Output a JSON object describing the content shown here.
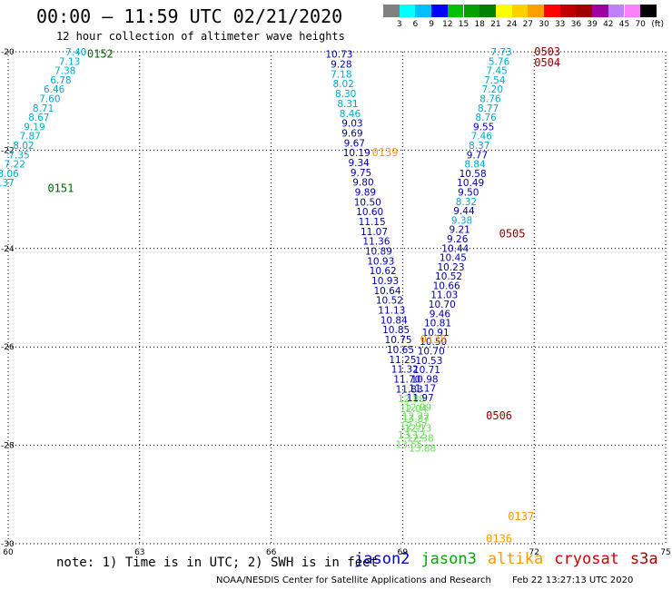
{
  "header": {
    "title": "00:00 – 11:59 UTC 02/21/2020",
    "subtitle": "12 hour collection of altimeter wave heights"
  },
  "legend": {
    "unit_label": "(ft)",
    "thresholds": [
      "3",
      "6",
      "9",
      "12",
      "15",
      "18",
      "21",
      "24",
      "27",
      "30",
      "33",
      "36",
      "39",
      "42",
      "45",
      "70"
    ],
    "colors": [
      "#808080",
      "#00ffff",
      "#00bfff",
      "#0000ff",
      "#00c000",
      "#00a000",
      "#008000",
      "#ffff00",
      "#ffd000",
      "#ffa000",
      "#ff0000",
      "#c00000",
      "#a00000",
      "#a000a0",
      "#c080ff",
      "#ff80ff",
      "#000000"
    ]
  },
  "footer": {
    "note": "note: 1) Time is in UTC; 2) SWH is in feet",
    "satellites": [
      {
        "name": "jason2",
        "color": "#0000cc"
      },
      {
        "name": "jason3",
        "color": "#00aa00"
      },
      {
        "name": "altika",
        "color": "#ff9900"
      },
      {
        "name": "cryosat",
        "color": "#cc0000"
      },
      {
        "name": "s3a",
        "color": "#aa0000"
      }
    ],
    "credit": "NOAA/NESDIS Center for Satellite Applications and Research",
    "timestamp": "Feb 22 13:27:13 UTC 2020"
  },
  "chart_data": {
    "type": "scatter",
    "xlim": [
      60,
      75
    ],
    "ylim": [
      -30,
      -20
    ],
    "x_ticks": [
      60,
      63,
      66,
      69,
      72,
      75
    ],
    "y_ticks": [
      -20,
      -22,
      -24,
      -26,
      -28,
      -30
    ],
    "grid": true,
    "colors": {
      "cyan": "#00aacc",
      "navy": "#0000aa",
      "green": "#66dd55",
      "orange": "#ff9900",
      "darkred": "#880000",
      "darkgreen": "#006600"
    },
    "pass_labels": [
      {
        "text": "0152",
        "x": 62.1,
        "y": -20.05,
        "color": "darkgreen"
      },
      {
        "text": "0151",
        "x": 61.2,
        "y": -22.78,
        "color": "darkgreen"
      },
      {
        "text": "0139",
        "x": 68.6,
        "y": -22.05,
        "color": "orange"
      },
      {
        "text": "0503",
        "x": 72.3,
        "y": -20.0,
        "color": "darkred"
      },
      {
        "text": "0504",
        "x": 72.3,
        "y": -20.22,
        "color": "darkred"
      },
      {
        "text": "0505",
        "x": 71.5,
        "y": -23.7,
        "color": "darkred"
      },
      {
        "text": "0506",
        "x": 71.2,
        "y": -27.4,
        "color": "darkred"
      },
      {
        "text": "0138",
        "x": 69.7,
        "y": -25.85,
        "color": "orange"
      },
      {
        "text": "0137",
        "x": 71.7,
        "y": -29.45,
        "color": "orange"
      },
      {
        "text": "0136",
        "x": 71.2,
        "y": -29.9,
        "color": "orange"
      }
    ],
    "points": [
      {
        "v": "7.40",
        "x": 61.55,
        "y": -20.0,
        "c": "cyan"
      },
      {
        "v": "7.13",
        "x": 61.4,
        "y": -20.19,
        "c": "cyan"
      },
      {
        "v": "7.38",
        "x": 61.3,
        "y": -20.38,
        "c": "cyan"
      },
      {
        "v": "6.78",
        "x": 61.2,
        "y": -20.57,
        "c": "cyan"
      },
      {
        "v": "6.46",
        "x": 61.05,
        "y": -20.76,
        "c": "cyan"
      },
      {
        "v": "7.60",
        "x": 60.95,
        "y": -20.95,
        "c": "cyan"
      },
      {
        "v": "8.71",
        "x": 60.8,
        "y": -21.14,
        "c": "cyan"
      },
      {
        "v": "8.67",
        "x": 60.7,
        "y": -21.33,
        "c": "cyan"
      },
      {
        "v": "9.19",
        "x": 60.6,
        "y": -21.52,
        "c": "cyan"
      },
      {
        "v": "7.87",
        "x": 60.5,
        "y": -21.71,
        "c": "cyan"
      },
      {
        "v": "8.02",
        "x": 60.35,
        "y": -21.9,
        "c": "cyan"
      },
      {
        "v": "7.35",
        "x": 60.25,
        "y": -22.09,
        "c": "cyan"
      },
      {
        "v": "7.22",
        "x": 60.15,
        "y": -22.28,
        "c": "cyan"
      },
      {
        "v": "8.06",
        "x": 60.0,
        "y": -22.47,
        "c": "cyan"
      },
      {
        "v": "6.37",
        "x": 59.9,
        "y": -22.66,
        "c": "cyan"
      },
      {
        "v": "10.73",
        "x": 67.55,
        "y": -20.05,
        "c": "navy"
      },
      {
        "v": "9.28",
        "x": 67.6,
        "y": -20.25,
        "c": "navy"
      },
      {
        "v": "7.18",
        "x": 67.6,
        "y": -20.45,
        "c": "cyan"
      },
      {
        "v": "8.02",
        "x": 67.65,
        "y": -20.65,
        "c": "cyan"
      },
      {
        "v": "8.30",
        "x": 67.7,
        "y": -20.85,
        "c": "cyan"
      },
      {
        "v": "8.31",
        "x": 67.75,
        "y": -21.05,
        "c": "cyan"
      },
      {
        "v": "8.46",
        "x": 67.8,
        "y": -21.25,
        "c": "cyan"
      },
      {
        "v": "9.03",
        "x": 67.85,
        "y": -21.45,
        "c": "navy"
      },
      {
        "v": "9.69",
        "x": 67.85,
        "y": -21.65,
        "c": "navy"
      },
      {
        "v": "9.67",
        "x": 67.9,
        "y": -21.85,
        "c": "navy"
      },
      {
        "v": "10.19",
        "x": 67.95,
        "y": -22.05,
        "c": "navy"
      },
      {
        "v": "9.34",
        "x": 68.0,
        "y": -22.25,
        "c": "navy"
      },
      {
        "v": "9.75",
        "x": 68.05,
        "y": -22.45,
        "c": "navy"
      },
      {
        "v": "9.80",
        "x": 68.1,
        "y": -22.65,
        "c": "navy"
      },
      {
        "v": "9.89",
        "x": 68.15,
        "y": -22.85,
        "c": "navy"
      },
      {
        "v": "10.50",
        "x": 68.2,
        "y": -23.05,
        "c": "navy"
      },
      {
        "v": "10.60",
        "x": 68.25,
        "y": -23.25,
        "c": "navy"
      },
      {
        "v": "11.15",
        "x": 68.3,
        "y": -23.45,
        "c": "navy"
      },
      {
        "v": "11.07",
        "x": 68.35,
        "y": -23.65,
        "c": "navy"
      },
      {
        "v": "11.36",
        "x": 68.4,
        "y": -23.85,
        "c": "navy"
      },
      {
        "v": "10.89",
        "x": 68.45,
        "y": -24.05,
        "c": "navy"
      },
      {
        "v": "10.93",
        "x": 68.5,
        "y": -24.25,
        "c": "navy"
      },
      {
        "v": "10.62",
        "x": 68.55,
        "y": -24.45,
        "c": "navy"
      },
      {
        "v": "10.93",
        "x": 68.6,
        "y": -24.65,
        "c": "navy"
      },
      {
        "v": "10.64",
        "x": 68.65,
        "y": -24.85,
        "c": "navy"
      },
      {
        "v": "10.52",
        "x": 68.7,
        "y": -25.05,
        "c": "navy"
      },
      {
        "v": "11.13",
        "x": 68.75,
        "y": -25.25,
        "c": "navy"
      },
      {
        "v": "10.84",
        "x": 68.8,
        "y": -25.45,
        "c": "navy"
      },
      {
        "v": "10.85",
        "x": 68.85,
        "y": -25.65,
        "c": "navy"
      },
      {
        "v": "10.75",
        "x": 68.9,
        "y": -25.85,
        "c": "navy"
      },
      {
        "v": "10.65",
        "x": 68.95,
        "y": -26.05,
        "c": "navy"
      },
      {
        "v": "11.25",
        "x": 69.0,
        "y": -26.25,
        "c": "navy"
      },
      {
        "v": "11.32",
        "x": 69.05,
        "y": -26.45,
        "c": "navy"
      },
      {
        "v": "11.70",
        "x": 69.1,
        "y": -26.65,
        "c": "navy"
      },
      {
        "v": "11.83",
        "x": 69.15,
        "y": -26.85,
        "c": "navy"
      },
      {
        "v": "12.89",
        "x": 69.2,
        "y": -27.05,
        "c": "green"
      },
      {
        "v": "12.04",
        "x": 69.25,
        "y": -27.25,
        "c": "green"
      },
      {
        "v": "13.87",
        "x": 69.3,
        "y": -27.45,
        "c": "green"
      },
      {
        "v": "12.13",
        "x": 69.35,
        "y": -27.65,
        "c": "green"
      },
      {
        "v": "12.38",
        "x": 69.4,
        "y": -27.85,
        "c": "green"
      },
      {
        "v": "13.88",
        "x": 69.45,
        "y": -28.05,
        "c": "green"
      },
      {
        "v": "7.73",
        "x": 71.25,
        "y": -20.0,
        "c": "cyan"
      },
      {
        "v": "5.76",
        "x": 71.2,
        "y": -20.19,
        "c": "cyan"
      },
      {
        "v": "7.45",
        "x": 71.15,
        "y": -20.38,
        "c": "cyan"
      },
      {
        "v": "7.54",
        "x": 71.1,
        "y": -20.57,
        "c": "cyan"
      },
      {
        "v": "7.20",
        "x": 71.05,
        "y": -20.76,
        "c": "cyan"
      },
      {
        "v": "8.76",
        "x": 71.0,
        "y": -20.95,
        "c": "cyan"
      },
      {
        "v": "8.77",
        "x": 70.95,
        "y": -21.14,
        "c": "cyan"
      },
      {
        "v": "8.76",
        "x": 70.9,
        "y": -21.33,
        "c": "cyan"
      },
      {
        "v": "9.55",
        "x": 70.85,
        "y": -21.52,
        "c": "navy"
      },
      {
        "v": "7.46",
        "x": 70.8,
        "y": -21.71,
        "c": "cyan"
      },
      {
        "v": "8.37",
        "x": 70.75,
        "y": -21.9,
        "c": "cyan"
      },
      {
        "v": "9.77",
        "x": 70.7,
        "y": -22.09,
        "c": "navy"
      },
      {
        "v": "8.84",
        "x": 70.65,
        "y": -22.28,
        "c": "cyan"
      },
      {
        "v": "10.58",
        "x": 70.6,
        "y": -22.47,
        "c": "navy"
      },
      {
        "v": "10.49",
        "x": 70.55,
        "y": -22.66,
        "c": "navy"
      },
      {
        "v": "9.50",
        "x": 70.5,
        "y": -22.85,
        "c": "navy"
      },
      {
        "v": "8.32",
        "x": 70.45,
        "y": -23.04,
        "c": "cyan"
      },
      {
        "v": "9.44",
        "x": 70.4,
        "y": -23.23,
        "c": "navy"
      },
      {
        "v": "9.38",
        "x": 70.35,
        "y": -23.42,
        "c": "cyan"
      },
      {
        "v": "9.21",
        "x": 70.3,
        "y": -23.61,
        "c": "navy"
      },
      {
        "v": "9.26",
        "x": 70.25,
        "y": -23.8,
        "c": "navy"
      },
      {
        "v": "10.44",
        "x": 70.2,
        "y": -23.99,
        "c": "navy"
      },
      {
        "v": "10.45",
        "x": 70.15,
        "y": -24.18,
        "c": "navy"
      },
      {
        "v": "10.23",
        "x": 70.1,
        "y": -24.37,
        "c": "navy"
      },
      {
        "v": "10.52",
        "x": 70.05,
        "y": -24.56,
        "c": "navy"
      },
      {
        "v": "10.66",
        "x": 70.0,
        "y": -24.75,
        "c": "navy"
      },
      {
        "v": "11.03",
        "x": 69.95,
        "y": -24.94,
        "c": "navy"
      },
      {
        "v": "10.70",
        "x": 69.9,
        "y": -25.13,
        "c": "navy"
      },
      {
        "v": "9.46",
        "x": 69.85,
        "y": -25.32,
        "c": "navy"
      },
      {
        "v": "10.81",
        "x": 69.8,
        "y": -25.51,
        "c": "navy"
      },
      {
        "v": "10.91",
        "x": 69.75,
        "y": -25.7,
        "c": "navy"
      },
      {
        "v": "10.50",
        "x": 69.7,
        "y": -25.89,
        "c": "navy"
      },
      {
        "v": "10.70",
        "x": 69.65,
        "y": -26.08,
        "c": "navy"
      },
      {
        "v": "10.53",
        "x": 69.6,
        "y": -26.27,
        "c": "navy"
      },
      {
        "v": "10.71",
        "x": 69.55,
        "y": -26.46,
        "c": "navy"
      },
      {
        "v": "10.98",
        "x": 69.5,
        "y": -26.65,
        "c": "navy"
      },
      {
        "v": "11.17",
        "x": 69.45,
        "y": -26.84,
        "c": "navy"
      },
      {
        "v": "11.97",
        "x": 69.4,
        "y": -27.03,
        "c": "navy"
      },
      {
        "v": "12.99",
        "x": 69.35,
        "y": -27.22,
        "c": "green"
      },
      {
        "v": "12.72",
        "x": 69.3,
        "y": -27.41,
        "c": "green"
      },
      {
        "v": "12.97",
        "x": 69.25,
        "y": -27.6,
        "c": "green"
      },
      {
        "v": "13.12",
        "x": 69.2,
        "y": -27.79,
        "c": "green"
      },
      {
        "v": "13.55",
        "x": 69.15,
        "y": -27.98,
        "c": "green"
      }
    ]
  }
}
